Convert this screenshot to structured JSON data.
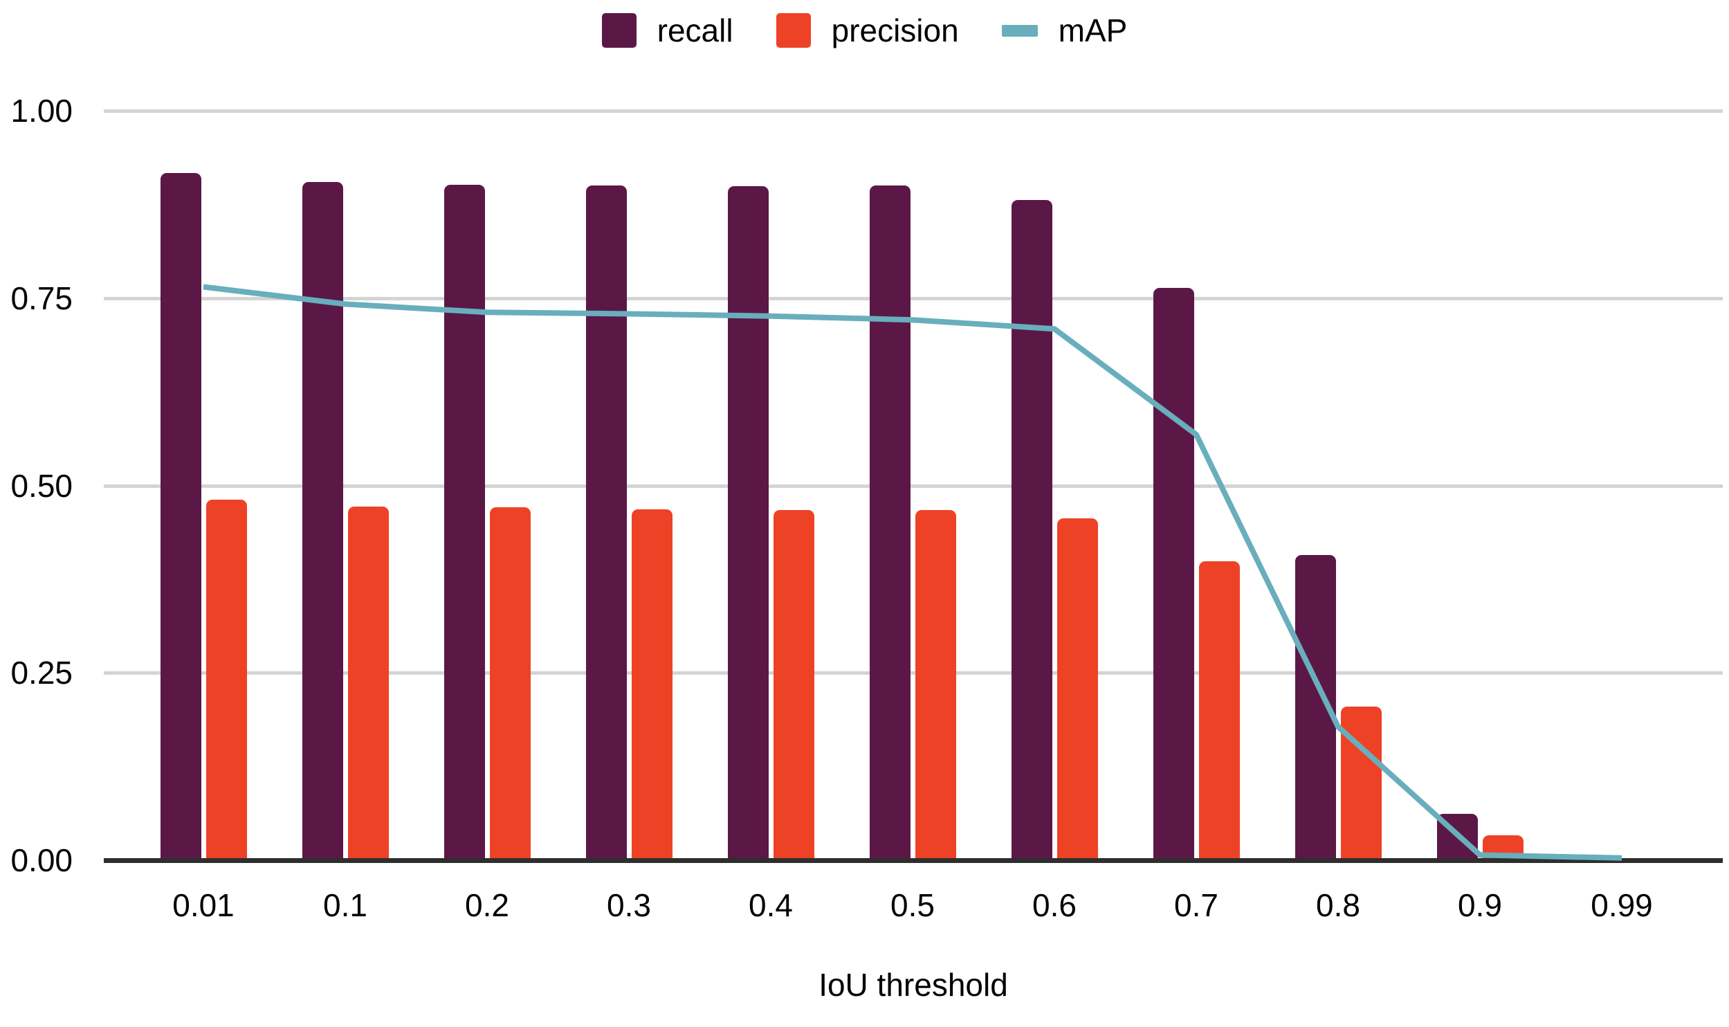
{
  "chart_data": {
    "type": "combo-bar-line",
    "title": "",
    "xlabel": "IoU threshold",
    "ylabel": "",
    "ylim": [
      0,
      1
    ],
    "grid": true,
    "legend_position": "top-center",
    "yticks": [
      {
        "value": 0.0,
        "label": "0.00"
      },
      {
        "value": 0.25,
        "label": "0.25"
      },
      {
        "value": 0.5,
        "label": "0.50"
      },
      {
        "value": 0.75,
        "label": "0.75"
      },
      {
        "value": 1.0,
        "label": "1.00"
      }
    ],
    "categories": [
      "0.01",
      "0.1",
      "0.2",
      "0.3",
      "0.4",
      "0.5",
      "0.6",
      "0.7",
      "0.8",
      "0.9",
      "0.99"
    ],
    "series": [
      {
        "name": "recall",
        "type": "bar",
        "color": "#5B1846",
        "values": [
          0.917,
          0.905,
          0.901,
          0.9,
          0.899,
          0.9,
          0.881,
          0.764,
          0.407,
          0.062,
          0.001
        ]
      },
      {
        "name": "precision",
        "type": "bar",
        "color": "#EE4226",
        "values": [
          0.481,
          0.472,
          0.471,
          0.468,
          0.467,
          0.467,
          0.456,
          0.399,
          0.205,
          0.033,
          0.001
        ]
      },
      {
        "name": "mAP",
        "type": "line",
        "color": "#69AEBD",
        "values": [
          0.765,
          0.742,
          0.731,
          0.729,
          0.726,
          0.721,
          0.709,
          0.568,
          0.178,
          0.007,
          0.003
        ]
      }
    ],
    "colors": {
      "gridline": "#D4D4D4",
      "axis": "#2E2E2E",
      "text": "#000000",
      "background": "#FFFFFF"
    }
  }
}
